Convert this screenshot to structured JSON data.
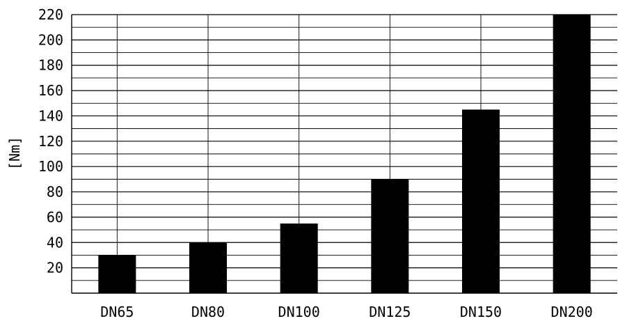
{
  "chart_data": {
    "type": "bar",
    "title": "",
    "xlabel": "",
    "ylabel": "[Nm]",
    "categories": [
      "DN65",
      "DN80",
      "DN100",
      "DN125",
      "DN150",
      "DN200"
    ],
    "values": [
      30,
      40,
      55,
      90,
      145,
      220
    ],
    "ylim": [
      0,
      220
    ],
    "yticks": [
      20,
      40,
      60,
      80,
      100,
      120,
      140,
      160,
      180,
      200,
      220
    ],
    "grid": true,
    "bar_color": "#000000"
  }
}
